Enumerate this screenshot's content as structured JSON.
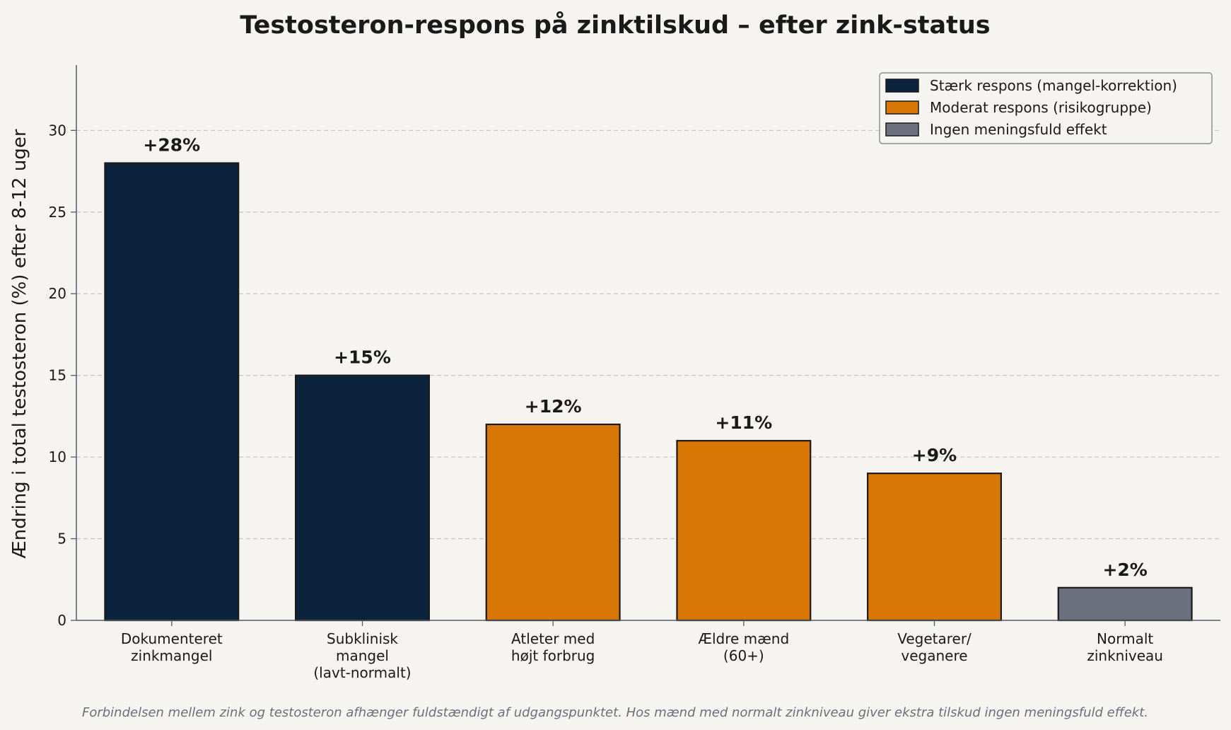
{
  "chart_data": {
    "type": "bar",
    "title": "Testosteron-respons på zinktilskud – efter zink-status",
    "ylabel": "Ændring i total testosteron (%) efter 8-12 uger",
    "xlabel": "",
    "ylim": [
      0,
      34
    ],
    "yticks": [
      "0",
      "5",
      "10",
      "15",
      "20",
      "25",
      "30"
    ],
    "grid": "y-dashed",
    "legend_position": "top-right",
    "categories": [
      [
        "Dokumenteret",
        "zinkmangel"
      ],
      [
        "Subklinisk",
        "mangel",
        "(lavt-normalt)"
      ],
      [
        "Atleter med",
        "højt forbrug"
      ],
      [
        "Ældre mænd",
        "(60+)"
      ],
      [
        "Vegetarer/",
        "veganere"
      ],
      [
        "Normalt",
        "zinkniveau"
      ]
    ],
    "values": [
      28,
      15,
      12,
      11,
      9,
      2
    ],
    "value_labels": [
      "+28%",
      "+15%",
      "+12%",
      "+11%",
      "+9%",
      "+2%"
    ],
    "groups": [
      0,
      0,
      1,
      1,
      1,
      2
    ],
    "legend": [
      {
        "label": "Stærk respons (mangel-korrektion)",
        "color": "#0b233d"
      },
      {
        "label": "Moderat respons (risikogruppe)",
        "color": "#d97706"
      },
      {
        "label": "Ingen meningsfuld effekt",
        "color": "#6b717e"
      }
    ],
    "footnote": "Forbindelsen mellem zink og testosteron afhænger fuldstændigt af udgangspunktet. Hos mænd med normalt zinkniveau giver ekstra tilskud ingen meningsfuld effekt."
  },
  "colors": {
    "background": "#f5f4f0",
    "bar_edge": "#1a1a1a",
    "axis": "#555a66",
    "grid": "#c9c9c9"
  }
}
